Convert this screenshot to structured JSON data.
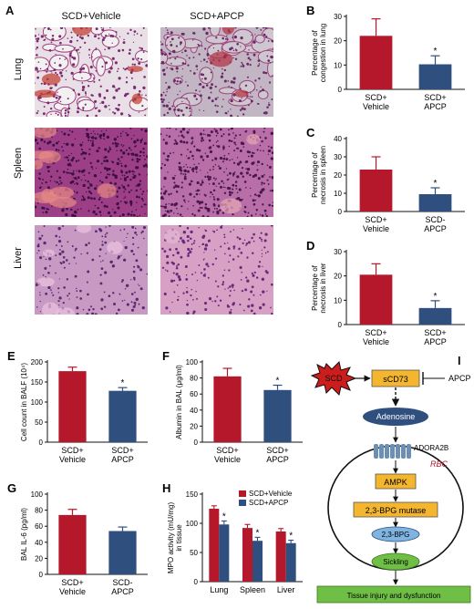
{
  "panels": {
    "A": {
      "letter": "A",
      "columns": [
        "SCD+Vehicle",
        "SCD+APCP"
      ],
      "rows": [
        "Lung",
        "Spleen",
        "Liver"
      ]
    },
    "I": {
      "letter": "I"
    }
  },
  "chart_data": [
    {
      "id": "B",
      "letter": "B",
      "type": "bar",
      "categories": [
        "SCD+\nVehicle",
        "SCD+\nAPCP"
      ],
      "values": [
        22,
        10.3
      ],
      "errors": [
        7,
        3.5
      ],
      "significance": [
        "",
        "*"
      ],
      "ylabel": "Percentage of\ncongestion in lung",
      "ylim": [
        0,
        30
      ],
      "yticks": [
        0,
        10,
        20,
        30
      ],
      "colors": [
        "#b5172b",
        "#2f4f7f"
      ]
    },
    {
      "id": "C",
      "letter": "C",
      "type": "bar",
      "categories": [
        "SCD+\nVehicle",
        "SCD-\nAPCP"
      ],
      "values": [
        23,
        9.5
      ],
      "errors": [
        7,
        3.5
      ],
      "significance": [
        "",
        "*"
      ],
      "ylabel": "Percentage of\nnecrosis in spleen",
      "ylim": [
        0,
        40
      ],
      "yticks": [
        0,
        10,
        20,
        30,
        40
      ],
      "colors": [
        "#b5172b",
        "#2f4f7f"
      ]
    },
    {
      "id": "D",
      "letter": "D",
      "type": "bar",
      "categories": [
        "SCD+\nVehicle",
        "SCD+\nAPCP"
      ],
      "values": [
        20.5,
        6.8
      ],
      "errors": [
        4.5,
        3
      ],
      "significance": [
        "",
        "*"
      ],
      "ylabel": "Percentage of\nnecrosis in liver",
      "ylim": [
        0,
        30
      ],
      "yticks": [
        0,
        10,
        20,
        30
      ],
      "colors": [
        "#b5172b",
        "#2f4f7f"
      ]
    },
    {
      "id": "E",
      "letter": "E",
      "type": "bar",
      "categories": [
        "SCD+\nVehicle",
        "SCD+\nAPCP"
      ],
      "values": [
        177,
        128
      ],
      "errors": [
        10,
        8
      ],
      "significance": [
        "",
        "*"
      ],
      "ylabel": "Cell count in BALF (10⁴)",
      "ylim": [
        0,
        200
      ],
      "yticks": [
        0,
        50,
        100,
        150,
        200
      ],
      "colors": [
        "#b5172b",
        "#2f4f7f"
      ]
    },
    {
      "id": "F",
      "letter": "F",
      "type": "bar",
      "categories": [
        "SCD+\nVehicle",
        "SCD+\nAPCP"
      ],
      "values": [
        82,
        65
      ],
      "errors": [
        10,
        6
      ],
      "significance": [
        "",
        "*"
      ],
      "ylabel": "Albumin in BAL (μg/ml)",
      "ylim": [
        0,
        100
      ],
      "yticks": [
        0,
        20,
        40,
        60,
        80,
        100
      ],
      "colors": [
        "#b5172b",
        "#2f4f7f"
      ]
    },
    {
      "id": "G",
      "letter": "G",
      "type": "bar",
      "categories": [
        "SCD+\nVehicle",
        "SCD-\nAPCP"
      ],
      "values": [
        74,
        54
      ],
      "errors": [
        7,
        5
      ],
      "significance": [
        "",
        ""
      ],
      "ylabel": "BAL IL-6 (pg/ml)",
      "ylim": [
        0,
        100
      ],
      "yticks": [
        0,
        20,
        40,
        60,
        80,
        100
      ],
      "colors": [
        "#b5172b",
        "#2f4f7f"
      ]
    },
    {
      "id": "H",
      "letter": "H",
      "type": "bar",
      "categories": [
        "Lung",
        "Spleen",
        "Liver"
      ],
      "series": [
        {
          "name": "SCD+Vehicle",
          "values": [
            125,
            92,
            86
          ],
          "errors": [
            5,
            6,
            5
          ],
          "color": "#b5172b"
        },
        {
          "name": "SCD+APCP",
          "values": [
            98,
            70,
            66
          ],
          "errors": [
            6,
            6,
            5
          ],
          "color": "#2f4f7f"
        }
      ],
      "significance": [
        "*",
        "*",
        "*"
      ],
      "ylabel": "MPO activity (mU/mg)\nin tissue",
      "ylim": [
        0,
        150
      ],
      "yticks": [
        0,
        50,
        100,
        150
      ],
      "legend": "top-right"
    }
  ],
  "pathway": {
    "scd": "SCD",
    "scd73": "sCD73",
    "apcp": "APCP",
    "adenosine": "Adenosine",
    "adora2b": "ADORA2B",
    "rbc": "RBC",
    "ampk": "AMPK",
    "bpg_mutase": "2,3-BPG mutase",
    "bpg": "2,3-BPG",
    "sickling": "Sickling",
    "outcome": "Tissue injury and dysfunction"
  }
}
